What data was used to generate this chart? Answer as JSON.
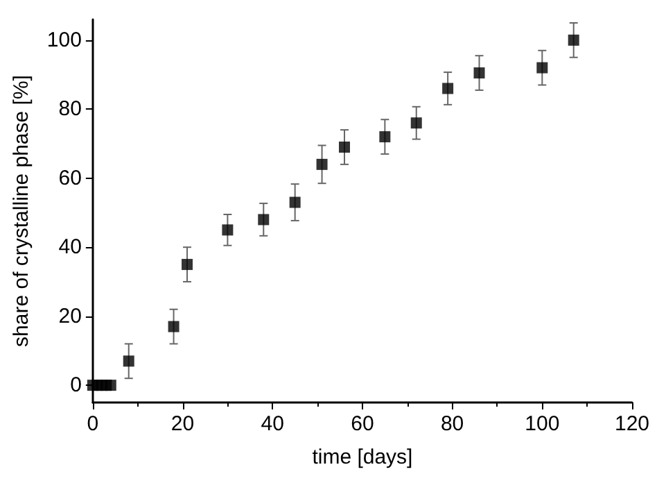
{
  "chart_data": {
    "type": "scatter",
    "xlabel": "time [days]",
    "ylabel": "share of crystalline phase [%]",
    "x": [
      0,
      1,
      2,
      3,
      4,
      8,
      18,
      21,
      30,
      38,
      45,
      51,
      56,
      65,
      72,
      79,
      86,
      100,
      107
    ],
    "series": [
      {
        "color": "#000000",
        "values": [
          0,
          0,
          0,
          0,
          0,
          7,
          17,
          35,
          45,
          48,
          53,
          64,
          69,
          72,
          76,
          86,
          90.5,
          92,
          100
        ],
        "errors": [
          null,
          null,
          null,
          null,
          null,
          5,
          5,
          5,
          4.5,
          4.7,
          5.3,
          5.5,
          5,
          5,
          4.7,
          4.7,
          5,
          5,
          5
        ]
      }
    ],
    "marker": "square",
    "xlim": [
      0,
      120
    ],
    "ylim": [
      -5,
      106
    ],
    "xticks": [
      0,
      20,
      40,
      60,
      80,
      100,
      120
    ],
    "yticks": [
      0,
      20,
      40,
      60,
      80,
      100
    ],
    "grid": false
  }
}
